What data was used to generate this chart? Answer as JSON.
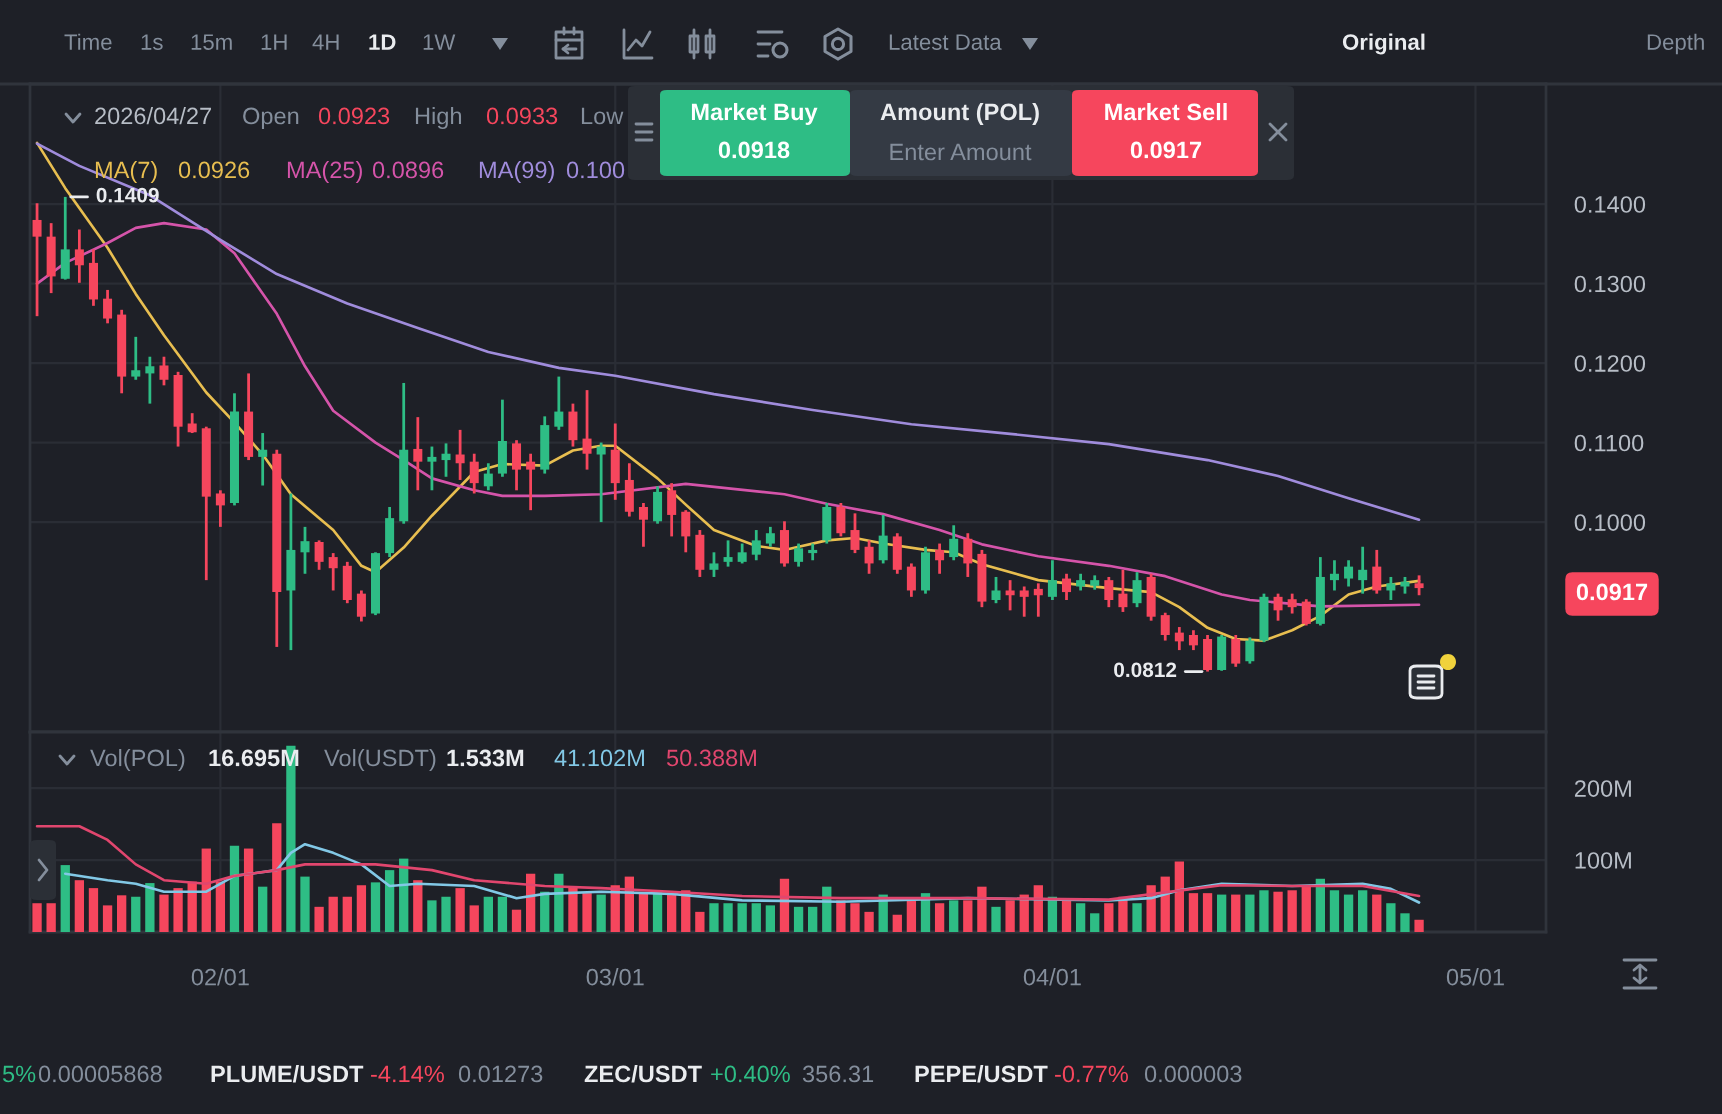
{
  "chart_data": [
    {
      "type": "candlestick",
      "x": [
        "2026-01-19",
        "2026-01-20",
        "2026-01-21",
        "2026-01-22",
        "2026-01-23",
        "2026-01-24",
        "2026-01-25",
        "2026-01-26",
        "2026-01-27",
        "2026-01-28",
        "2026-01-29",
        "2026-01-30",
        "2026-01-31",
        "2026-02-01",
        "2026-02-02",
        "2026-02-03",
        "2026-02-04",
        "2026-02-05",
        "2026-02-06",
        "2026-02-07",
        "2026-02-08",
        "2026-02-09",
        "2026-02-10",
        "2026-02-11",
        "2026-02-12",
        "2026-02-13",
        "2026-02-14",
        "2026-02-15",
        "2026-02-16",
        "2026-02-17",
        "2026-02-18",
        "2026-02-19",
        "2026-02-20",
        "2026-02-21",
        "2026-02-22",
        "2026-02-23",
        "2026-02-24",
        "2026-02-25",
        "2026-02-26",
        "2026-02-27",
        "2026-02-28",
        "2026-03-01",
        "2026-03-02",
        "2026-03-03",
        "2026-03-04",
        "2026-03-05",
        "2026-03-06",
        "2026-03-07",
        "2026-03-08",
        "2026-03-09",
        "2026-03-10",
        "2026-03-11",
        "2026-03-12",
        "2026-03-13",
        "2026-03-14",
        "2026-03-15",
        "2026-03-16",
        "2026-03-17",
        "2026-03-18",
        "2026-03-19",
        "2026-03-20",
        "2026-03-21",
        "2026-03-22",
        "2026-03-23",
        "2026-03-24",
        "2026-03-25",
        "2026-03-26",
        "2026-03-27",
        "2026-03-28",
        "2026-03-29",
        "2026-03-30",
        "2026-03-31",
        "2026-04-01",
        "2026-04-02",
        "2026-04-03",
        "2026-04-04",
        "2026-04-05",
        "2026-04-06",
        "2026-04-07",
        "2026-04-08",
        "2026-04-09",
        "2026-04-10",
        "2026-04-11",
        "2026-04-12",
        "2026-04-13",
        "2026-04-14",
        "2026-04-15",
        "2026-04-16",
        "2026-04-17",
        "2026-04-18",
        "2026-04-19",
        "2026-04-20",
        "2026-04-21",
        "2026-04-22",
        "2026-04-23",
        "2026-04-24",
        "2026-04-25",
        "2026-04-26",
        "2026-04-27"
      ],
      "ohlc": [
        [
          0.138,
          0.1401,
          0.1259,
          0.1359
        ],
        [
          0.1359,
          0.1376,
          0.1288,
          0.1309
        ],
        [
          0.1306,
          0.1409,
          0.1305,
          0.1343
        ],
        [
          0.1343,
          0.1368,
          0.1301,
          0.1323
        ],
        [
          0.1326,
          0.1343,
          0.1272,
          0.128
        ],
        [
          0.1281,
          0.1292,
          0.125,
          0.1256
        ],
        [
          0.1261,
          0.1267,
          0.1162,
          0.1183
        ],
        [
          0.1183,
          0.1233,
          0.1179,
          0.1191
        ],
        [
          0.1187,
          0.1208,
          0.1149,
          0.1196
        ],
        [
          0.1197,
          0.1208,
          0.1172,
          0.1179
        ],
        [
          0.1185,
          0.1189,
          0.1095,
          0.112
        ],
        [
          0.1124,
          0.1137,
          0.1112,
          0.1113
        ],
        [
          0.1118,
          0.112,
          0.0927,
          0.1032
        ],
        [
          0.1036,
          0.104,
          0.0994,
          0.1021
        ],
        [
          0.1024,
          0.1162,
          0.1021,
          0.1139
        ],
        [
          0.1139,
          0.1187,
          0.1078,
          0.1082
        ],
        [
          0.1082,
          0.1112,
          0.1046,
          0.1091
        ],
        [
          0.1086,
          0.1091,
          0.0843,
          0.0912
        ],
        [
          0.0914,
          0.1036,
          0.0839,
          0.0965
        ],
        [
          0.0962,
          0.0994,
          0.0935,
          0.0976
        ],
        [
          0.0975,
          0.0977,
          0.094,
          0.095
        ],
        [
          0.0956,
          0.0961,
          0.0914,
          0.0942
        ],
        [
          0.0945,
          0.095,
          0.0898,
          0.0902
        ],
        [
          0.091,
          0.0914,
          0.0875,
          0.0881
        ],
        [
          0.0885,
          0.0962,
          0.0883,
          0.0961
        ],
        [
          0.0961,
          0.1019,
          0.0956,
          0.1005
        ],
        [
          0.1001,
          0.1175,
          0.0998,
          0.1091
        ],
        [
          0.1092,
          0.1132,
          0.104,
          0.1076
        ],
        [
          0.1076,
          0.1095,
          0.104,
          0.1082
        ],
        [
          0.1078,
          0.1099,
          0.1057,
          0.1086
        ],
        [
          0.1085,
          0.1116,
          0.1053,
          0.1074
        ],
        [
          0.1076,
          0.1086,
          0.1036,
          0.1049
        ],
        [
          0.1045,
          0.1074,
          0.104,
          0.1061
        ],
        [
          0.1061,
          0.1154,
          0.1057,
          0.1102
        ],
        [
          0.1099,
          0.1103,
          0.104,
          0.1066
        ],
        [
          0.1076,
          0.1086,
          0.1015,
          0.1066
        ],
        [
          0.1066,
          0.1133,
          0.1061,
          0.1122
        ],
        [
          0.112,
          0.1183,
          0.1116,
          0.1139
        ],
        [
          0.1139,
          0.1149,
          0.1095,
          0.1103
        ],
        [
          0.1105,
          0.1166,
          0.1066,
          0.1086
        ],
        [
          0.1085,
          0.11,
          0.1,
          0.1095
        ],
        [
          0.1091,
          0.1124,
          0.1028,
          0.1049
        ],
        [
          0.1053,
          0.1074,
          0.1007,
          0.1013
        ],
        [
          0.1019,
          0.1024,
          0.0969,
          0.1003
        ],
        [
          0.1001,
          0.1045,
          0.0998,
          0.1038
        ],
        [
          0.104,
          0.1049,
          0.0982,
          0.1009
        ],
        [
          0.1013,
          0.1015,
          0.0962,
          0.0982
        ],
        [
          0.0984,
          0.099,
          0.0931,
          0.094
        ],
        [
          0.094,
          0.0962,
          0.0931,
          0.0948
        ],
        [
          0.095,
          0.0977,
          0.0944,
          0.0956
        ],
        [
          0.095,
          0.0973,
          0.0948,
          0.0962
        ],
        [
          0.0959,
          0.099,
          0.0952,
          0.0977
        ],
        [
          0.0973,
          0.0994,
          0.0969,
          0.0986
        ],
        [
          0.099,
          0.1001,
          0.0944,
          0.0948
        ],
        [
          0.095,
          0.0973,
          0.0944,
          0.0967
        ],
        [
          0.0961,
          0.0973,
          0.0952,
          0.0965
        ],
        [
          0.0977,
          0.1024,
          0.0973,
          0.1019
        ],
        [
          0.1019,
          0.1024,
          0.0982,
          0.0986
        ],
        [
          0.099,
          0.1011,
          0.0961,
          0.0965
        ],
        [
          0.0969,
          0.0977,
          0.0935,
          0.0948
        ],
        [
          0.0952,
          0.1009,
          0.0948,
          0.0983
        ],
        [
          0.0982,
          0.0986,
          0.0935,
          0.094
        ],
        [
          0.0944,
          0.0948,
          0.0906,
          0.0914
        ],
        [
          0.0914,
          0.0969,
          0.091,
          0.0962
        ],
        [
          0.0965,
          0.0973,
          0.0935,
          0.0952
        ],
        [
          0.0956,
          0.0996,
          0.0952,
          0.0979
        ],
        [
          0.0979,
          0.0986,
          0.0931,
          0.0948
        ],
        [
          0.096,
          0.0965,
          0.0893,
          0.09
        ],
        [
          0.0902,
          0.0931,
          0.0898,
          0.0914
        ],
        [
          0.0914,
          0.0927,
          0.0889,
          0.0908
        ],
        [
          0.0914,
          0.0919,
          0.0881,
          0.0906
        ],
        [
          0.0916,
          0.0923,
          0.0881,
          0.0908
        ],
        [
          0.0906,
          0.0952,
          0.0902,
          0.0927
        ],
        [
          0.0929,
          0.0935,
          0.0902,
          0.0912
        ],
        [
          0.0919,
          0.0935,
          0.0914,
          0.0927
        ],
        [
          0.092,
          0.0933,
          0.0915,
          0.0927
        ],
        [
          0.0927,
          0.0931,
          0.0893,
          0.0902
        ],
        [
          0.091,
          0.094,
          0.0887,
          0.0893
        ],
        [
          0.0898,
          0.0937,
          0.0893,
          0.0927
        ],
        [
          0.0931,
          0.0935,
          0.0876,
          0.0881
        ],
        [
          0.0883,
          0.0886,
          0.0851,
          0.0858
        ],
        [
          0.0861,
          0.0868,
          0.0839,
          0.085
        ],
        [
          0.0858,
          0.0864,
          0.0839,
          0.0845
        ],
        [
          0.0853,
          0.0858,
          0.0812,
          0.0814
        ],
        [
          0.0814,
          0.0858,
          0.0813,
          0.0856
        ],
        [
          0.0853,
          0.0858,
          0.0818,
          0.0822
        ],
        [
          0.0825,
          0.0855,
          0.0822,
          0.0851
        ],
        [
          0.0851,
          0.091,
          0.0849,
          0.0906
        ],
        [
          0.0906,
          0.091,
          0.0876,
          0.0889
        ],
        [
          0.0903,
          0.091,
          0.0885,
          0.0893
        ],
        [
          0.09,
          0.0903,
          0.087,
          0.0872
        ],
        [
          0.0872,
          0.0956,
          0.087,
          0.0931
        ],
        [
          0.0927,
          0.0952,
          0.0914,
          0.0935
        ],
        [
          0.0929,
          0.0952,
          0.0919,
          0.0944
        ],
        [
          0.0927,
          0.0969,
          0.091,
          0.094
        ],
        [
          0.0944,
          0.0965,
          0.091,
          0.0914
        ],
        [
          0.0914,
          0.0931,
          0.0902,
          0.0923
        ],
        [
          0.0919,
          0.0931,
          0.091,
          0.0925
        ],
        [
          0.0923,
          0.0933,
          0.0908,
          0.0917
        ]
      ],
      "colors": [
        "#f6465d",
        "#f6465d",
        "#2ebd85",
        "#f6465d",
        "#f6465d",
        "#f6465d",
        "#f6465d",
        "#2ebd85",
        "#2ebd85",
        "#f6465d",
        "#f6465d",
        "#f6465d",
        "#f6465d",
        "#f6465d",
        "#2ebd85",
        "#f6465d",
        "#2ebd85",
        "#f6465d",
        "#2ebd85",
        "#2ebd85",
        "#f6465d",
        "#f6465d",
        "#f6465d",
        "#f6465d",
        "#2ebd85",
        "#2ebd85",
        "#2ebd85",
        "#f6465d",
        "#2ebd85",
        "#2ebd85",
        "#f6465d",
        "#f6465d",
        "#2ebd85",
        "#2ebd85",
        "#f6465d",
        "#f6465d",
        "#2ebd85",
        "#2ebd85",
        "#f6465d",
        "#f6465d",
        "#2ebd85",
        "#f6465d",
        "#f6465d",
        "#f6465d",
        "#2ebd85",
        "#f6465d",
        "#f6465d",
        "#f6465d",
        "#2ebd85",
        "#2ebd85",
        "#2ebd85",
        "#2ebd85",
        "#2ebd85",
        "#f6465d",
        "#2ebd85",
        "#2ebd85",
        "#2ebd85",
        "#f6465d",
        "#f6465d",
        "#f6465d",
        "#2ebd85",
        "#f6465d",
        "#f6465d",
        "#2ebd85",
        "#f6465d",
        "#2ebd85",
        "#f6465d",
        "#f6465d",
        "#2ebd85",
        "#f6465d",
        "#f6465d",
        "#f6465d",
        "#2ebd85",
        "#f6465d",
        "#2ebd85",
        "#2ebd85",
        "#f6465d",
        "#f6465d",
        "#2ebd85",
        "#f6465d",
        "#f6465d",
        "#f6465d",
        "#f6465d",
        "#f6465d",
        "#2ebd85",
        "#f6465d",
        "#2ebd85",
        "#2ebd85",
        "#f6465d",
        "#f6465d",
        "#f6465d",
        "#2ebd85",
        "#2ebd85",
        "#2ebd85",
        "#2ebd85",
        "#f6465d",
        "#2ebd85",
        "#2ebd85",
        "#f6465d"
      ],
      "series": [
        {
          "name": "MA(7)",
          "type": "line",
          "color": "#e8be50",
          "x": [
            "2026-01-19",
            "2026-01-21",
            "2026-01-24",
            "2026-01-26",
            "2026-01-28",
            "2026-01-31",
            "2026-02-02",
            "2026-02-04",
            "2026-02-06",
            "2026-02-09",
            "2026-02-11",
            "2026-02-12",
            "2026-02-14",
            "2026-02-16",
            "2026-02-19",
            "2026-02-21",
            "2026-02-24",
            "2026-02-26",
            "2026-02-28",
            "2026-03-01",
            "2026-03-04",
            "2026-03-06",
            "2026-03-08",
            "2026-03-11",
            "2026-03-13",
            "2026-03-16",
            "2026-03-18",
            "2026-03-20",
            "2026-03-23",
            "2026-03-25",
            "2026-03-27",
            "2026-03-31",
            "2026-04-05",
            "2026-04-08",
            "2026-04-10",
            "2026-04-12",
            "2026-04-14",
            "2026-04-16",
            "2026-04-18",
            "2026-04-20",
            "2026-04-22",
            "2026-04-24",
            "2026-04-27"
          ],
          "values": [
            0.1477,
            0.142,
            0.1345,
            0.1287,
            0.1235,
            0.1163,
            0.1125,
            0.1085,
            0.1035,
            0.099,
            0.0945,
            0.0937,
            0.0968,
            0.1008,
            0.1063,
            0.1073,
            0.1071,
            0.109,
            0.1096,
            0.1096,
            0.1055,
            0.1022,
            0.099,
            0.097,
            0.0965,
            0.0977,
            0.098,
            0.0973,
            0.0965,
            0.0962,
            0.0947,
            0.0927,
            0.0917,
            0.0912,
            0.0893,
            0.0867,
            0.0853,
            0.0851,
            0.0864,
            0.0882,
            0.0909,
            0.0919,
            0.0926
          ]
        },
        {
          "name": "MA(25)",
          "type": "line",
          "color": "#d554aa",
          "x": [
            "2026-01-19",
            "2026-01-21",
            "2026-01-24",
            "2026-01-26",
            "2026-01-28",
            "2026-01-31",
            "2026-02-02",
            "2026-02-05",
            "2026-02-07",
            "2026-02-09",
            "2026-02-12",
            "2026-02-14",
            "2026-02-16",
            "2026-02-19",
            "2026-02-21",
            "2026-02-24",
            "2026-02-28",
            "2026-03-06",
            "2026-03-13",
            "2026-03-16",
            "2026-03-20",
            "2026-03-24",
            "2026-03-27",
            "2026-03-31",
            "2026-04-05",
            "2026-04-09",
            "2026-04-13",
            "2026-04-15",
            "2026-04-20",
            "2026-04-27"
          ],
          "values": [
            0.13,
            0.1326,
            0.1351,
            0.137,
            0.1376,
            0.1368,
            0.1338,
            0.1262,
            0.1196,
            0.114,
            0.11,
            0.1078,
            0.1055,
            0.104,
            0.1033,
            0.1033,
            0.1035,
            0.1048,
            0.1035,
            0.1023,
            0.101,
            0.099,
            0.0972,
            0.0957,
            0.0945,
            0.0932,
            0.0909,
            0.0902,
            0.0894,
            0.0896
          ]
        },
        {
          "name": "MA(99)",
          "type": "line",
          "color": "#a08cdc",
          "x": [
            "2026-01-19",
            "2026-01-22",
            "2026-01-27",
            "2026-02-01",
            "2026-02-05",
            "2026-02-10",
            "2026-02-15",
            "2026-02-20",
            "2026-02-25",
            "2026-03-01",
            "2026-03-08",
            "2026-03-15",
            "2026-03-22",
            "2026-03-29",
            "2026-04-05",
            "2026-04-12",
            "2026-04-17",
            "2026-04-22",
            "2026-04-27"
          ],
          "values": [
            0.1476,
            0.1448,
            0.1411,
            0.1355,
            0.1312,
            0.1275,
            0.1244,
            0.1214,
            0.1194,
            0.1184,
            0.1161,
            0.1141,
            0.1123,
            0.1111,
            0.1098,
            0.1078,
            0.1058,
            0.103,
            0.1003
          ]
        }
      ],
      "xlim": [
        "2026-01-18T12:00",
        "2026-05-06"
      ],
      "ylim": [
        0.0736,
        0.1551
      ],
      "xticks": [
        {
          "value": "2026-02-01",
          "label": null
        },
        {
          "value": "2026-03-01",
          "label": null
        },
        {
          "value": "2026-04-01",
          "label": null
        },
        {
          "value": "2026-05-01",
          "label": null
        }
      ],
      "yticks": [
        {
          "value": 0.1,
          "label": "0.1000"
        },
        {
          "value": 0.11,
          "label": "0.1100"
        },
        {
          "value": 0.12,
          "label": "0.1200"
        },
        {
          "value": 0.13,
          "label": "0.1300"
        },
        {
          "value": 0.14,
          "label": "0.1400"
        }
      ],
      "tick_labels": "y",
      "grid": true,
      "legend": "top left",
      "annotations": [
        "Time",
        "1s",
        "15m",
        "1H",
        "4H",
        "1D",
        "1W",
        "Latest Data",
        "Original",
        "Depth",
        "2026/04/27",
        "Open",
        "0.0923",
        "High",
        "0.0933",
        "Low",
        "0.0926",
        "0.0896",
        "0.100",
        "Market Buy",
        "0.0918",
        "Amount (POL)",
        "Enter Amount",
        "Market Sell",
        "0.0917",
        {
          "text": "0.1409",
          "x": "2026-01-21",
          "y": 0.1409
        },
        {
          "text": "0.0812",
          "x": "2026-04-12",
          "y": 0.0812
        },
        "0.0917"
      ]
    },
    {
      "type": "bar",
      "x": [
        "2026-01-19",
        "2026-01-20",
        "2026-01-21",
        "2026-01-22",
        "2026-01-23",
        "2026-01-24",
        "2026-01-25",
        "2026-01-26",
        "2026-01-27",
        "2026-01-28",
        "2026-01-29",
        "2026-01-30",
        "2026-01-31",
        "2026-02-01",
        "2026-02-02",
        "2026-02-03",
        "2026-02-04",
        "2026-02-05",
        "2026-02-06",
        "2026-02-07",
        "2026-02-08",
        "2026-02-09",
        "2026-02-10",
        "2026-02-11",
        "2026-02-12",
        "2026-02-13",
        "2026-02-14",
        "2026-02-15",
        "2026-02-16",
        "2026-02-17",
        "2026-02-18",
        "2026-02-19",
        "2026-02-20",
        "2026-02-21",
        "2026-02-22",
        "2026-02-23",
        "2026-02-24",
        "2026-02-25",
        "2026-02-26",
        "2026-02-27",
        "2026-02-28",
        "2026-03-01",
        "2026-03-02",
        "2026-03-03",
        "2026-03-04",
        "2026-03-05",
        "2026-03-06",
        "2026-03-07",
        "2026-03-08",
        "2026-03-09",
        "2026-03-10",
        "2026-03-11",
        "2026-03-12",
        "2026-03-13",
        "2026-03-14",
        "2026-03-15",
        "2026-03-16",
        "2026-03-17",
        "2026-03-18",
        "2026-03-19",
        "2026-03-20",
        "2026-03-21",
        "2026-03-22",
        "2026-03-23",
        "2026-03-24",
        "2026-03-25",
        "2026-03-26",
        "2026-03-27",
        "2026-03-28",
        "2026-03-29",
        "2026-03-30",
        "2026-03-31",
        "2026-04-01",
        "2026-04-02",
        "2026-04-03",
        "2026-04-04",
        "2026-04-05",
        "2026-04-06",
        "2026-04-07",
        "2026-04-08",
        "2026-04-09",
        "2026-04-10",
        "2026-04-11",
        "2026-04-12",
        "2026-04-13",
        "2026-04-14",
        "2026-04-15",
        "2026-04-16",
        "2026-04-17",
        "2026-04-18",
        "2026-04-19",
        "2026-04-20",
        "2026-04-21",
        "2026-04-22",
        "2026-04-23",
        "2026-04-24",
        "2026-04-25",
        "2026-04-26",
        "2026-04-27"
      ],
      "series": [
        {
          "values": [
            40,
            40,
            93,
            72,
            61,
            37,
            51,
            49,
            68,
            52,
            61,
            70,
            116,
            70,
            120,
            116,
            63,
            151,
            259,
            77,
            35,
            49,
            49,
            65,
            69,
            86,
            102,
            72,
            44,
            49,
            61,
            37,
            49,
            49,
            31,
            81,
            56,
            81,
            63,
            54,
            52,
            65,
            77,
            54,
            58,
            52,
            58,
            28,
            40,
            40,
            40,
            40,
            37,
            74,
            35,
            35,
            63,
            44,
            40,
            28,
            52,
            24,
            44,
            54,
            40,
            44,
            44,
            63,
            35,
            44,
            52,
            65,
            49,
            44,
            40,
            26,
            40,
            49,
            40,
            65,
            77,
            98,
            54,
            54,
            52,
            52,
            52,
            58,
            56,
            58,
            65,
            74,
            58,
            52,
            58,
            52,
            40,
            26,
            17
          ],
          "colors": [
            "#f6465d",
            "#f6465d",
            "#2ebd85",
            "#f6465d",
            "#f6465d",
            "#f6465d",
            "#f6465d",
            "#2ebd85",
            "#2ebd85",
            "#f6465d",
            "#f6465d",
            "#f6465d",
            "#f6465d",
            "#f6465d",
            "#2ebd85",
            "#f6465d",
            "#2ebd85",
            "#f6465d",
            "#2ebd85",
            "#2ebd85",
            "#f6465d",
            "#f6465d",
            "#f6465d",
            "#f6465d",
            "#2ebd85",
            "#2ebd85",
            "#2ebd85",
            "#f6465d",
            "#2ebd85",
            "#2ebd85",
            "#f6465d",
            "#f6465d",
            "#2ebd85",
            "#2ebd85",
            "#f6465d",
            "#f6465d",
            "#2ebd85",
            "#2ebd85",
            "#f6465d",
            "#f6465d",
            "#2ebd85",
            "#f6465d",
            "#f6465d",
            "#f6465d",
            "#2ebd85",
            "#f6465d",
            "#f6465d",
            "#f6465d",
            "#2ebd85",
            "#2ebd85",
            "#2ebd85",
            "#2ebd85",
            "#2ebd85",
            "#f6465d",
            "#2ebd85",
            "#2ebd85",
            "#2ebd85",
            "#f6465d",
            "#f6465d",
            "#f6465d",
            "#2ebd85",
            "#f6465d",
            "#f6465d",
            "#2ebd85",
            "#f6465d",
            "#2ebd85",
            "#f6465d",
            "#f6465d",
            "#2ebd85",
            "#f6465d",
            "#f6465d",
            "#f6465d",
            "#2ebd85",
            "#f6465d",
            "#2ebd85",
            "#2ebd85",
            "#f6465d",
            "#f6465d",
            "#2ebd85",
            "#f6465d",
            "#f6465d",
            "#f6465d",
            "#f6465d",
            "#f6465d",
            "#2ebd85",
            "#f6465d",
            "#2ebd85",
            "#2ebd85",
            "#f6465d",
            "#f6465d",
            "#f6465d",
            "#2ebd85",
            "#2ebd85",
            "#2ebd85",
            "#2ebd85",
            "#f6465d",
            "#2ebd85",
            "#2ebd85",
            "#f6465d"
          ]
        },
        {
          "type": "line",
          "color": "#82c8e6",
          "x": [
            "2026-01-21",
            "2026-01-24",
            "2026-01-26",
            "2026-01-28",
            "2026-01-31",
            "2026-02-02",
            "2026-02-05",
            "2026-02-06",
            "2026-02-07",
            "2026-02-09",
            "2026-02-11",
            "2026-02-13",
            "2026-02-15",
            "2026-02-19",
            "2026-02-22",
            "2026-02-24",
            "2026-02-28",
            "2026-03-05",
            "2026-03-10",
            "2026-03-17",
            "2026-03-26",
            "2026-04-05",
            "2026-04-08",
            "2026-04-10",
            "2026-04-13",
            "2026-04-18",
            "2026-04-23",
            "2026-04-25",
            "2026-04-27"
          ],
          "values": [
            81,
            72,
            67,
            56,
            56,
            78,
            86,
            110,
            122,
            110,
            94,
            64,
            67,
            64,
            47,
            53,
            56,
            53,
            44,
            42,
            47,
            44,
            47,
            58,
            67,
            64,
            67,
            60,
            41
          ]
        },
        {
          "type": "line",
          "color": "#e1466e",
          "x": [
            "2026-01-19",
            "2026-01-22",
            "2026-01-24",
            "2026-01-26",
            "2026-01-28",
            "2026-01-31",
            "2026-02-02",
            "2026-02-05",
            "2026-02-07",
            "2026-02-12",
            "2026-02-16",
            "2026-02-19",
            "2026-02-24",
            "2026-02-28",
            "2026-03-05",
            "2026-03-10",
            "2026-03-17",
            "2026-03-26",
            "2026-04-05",
            "2026-04-09",
            "2026-04-13",
            "2026-04-18",
            "2026-04-23",
            "2026-04-27"
          ],
          "values": [
            147,
            147,
            128,
            94,
            72,
            67,
            78,
            86,
            94,
            94,
            86,
            72,
            64,
            61,
            56,
            50,
            47,
            47,
            45,
            55,
            65,
            64,
            64,
            50
          ]
        }
      ],
      "xlim": [
        "2026-01-18T12:00",
        "2026-05-06"
      ],
      "ylim": [
        0,
        278
      ],
      "xticks": [
        {
          "value": "2026-02-01",
          "label": "02/01"
        },
        {
          "value": "2026-03-01",
          "label": "03/01"
        },
        {
          "value": "2026-04-01",
          "label": "04/01"
        },
        {
          "value": "2026-05-01",
          "label": "05/01"
        }
      ],
      "yticks": [
        {
          "value": 100,
          "label": "100M"
        },
        {
          "value": 200,
          "label": "200M"
        }
      ],
      "grid": true,
      "annotations": [
        "Vol(POL)",
        "16.695M",
        "Vol(USDT)",
        "1.533M",
        "41.102M",
        "50.388M",
        "5%",
        "0.00005868",
        "PLUME/USDT",
        "-4.14%",
        "0.01273",
        "ZEC/USDT",
        "+0.40%",
        "356.31",
        "PEPE/USDT",
        "-0.77%",
        "0.000003"
      ]
    }
  ]
}
